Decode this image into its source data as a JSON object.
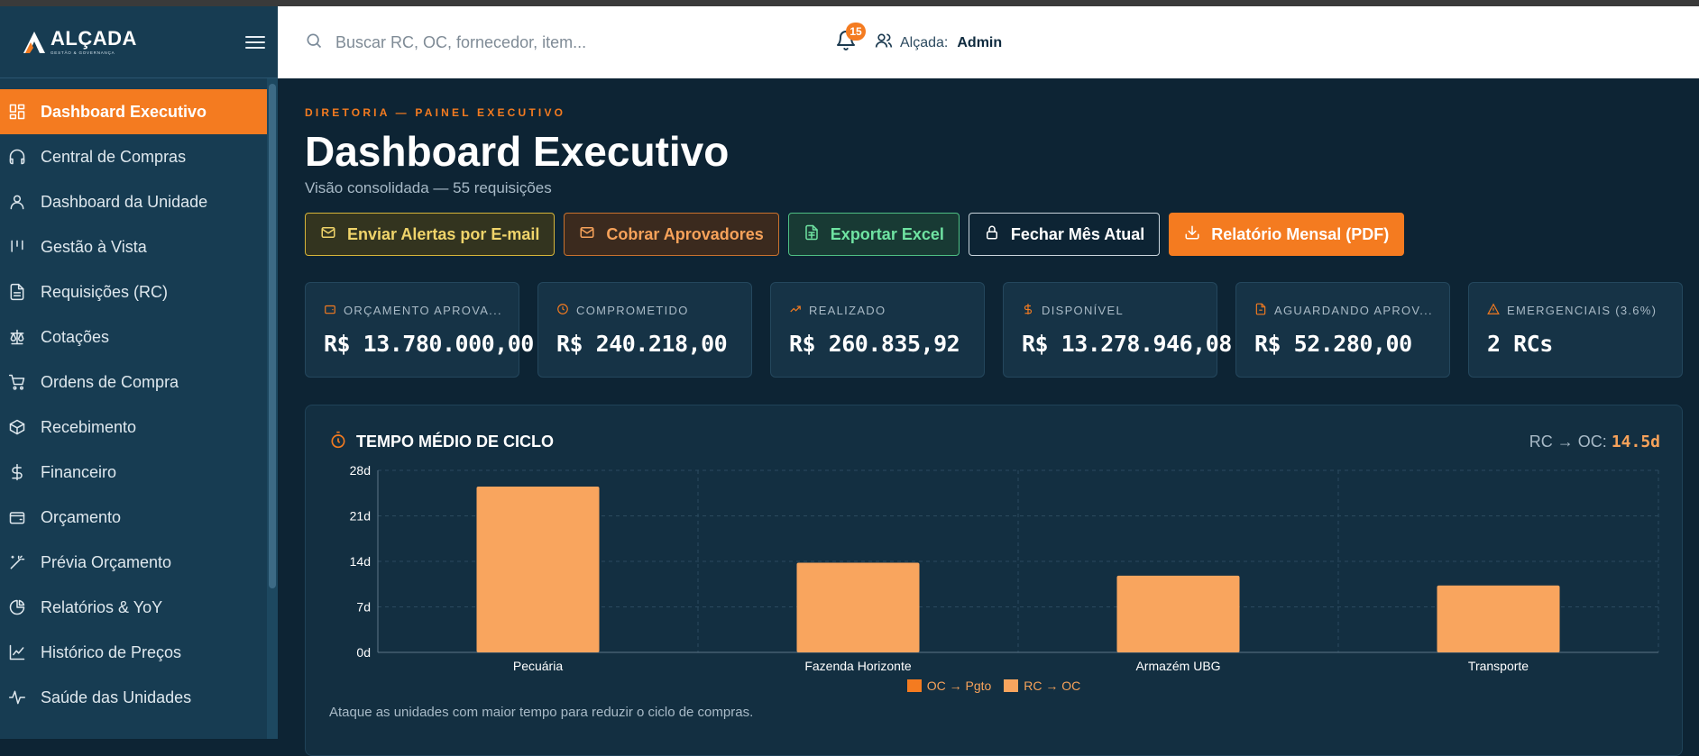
{
  "brand": {
    "name": "ALÇADA",
    "tagline": "GESTÃO & GOVERNANÇA"
  },
  "header": {
    "search_placeholder": "Buscar RC, OC, fornecedor, item...",
    "notifications_count": "15",
    "user_label": "Alçada:",
    "user_value": "Admin"
  },
  "sidebar": {
    "items": [
      {
        "label": "Dashboard Executivo",
        "icon": "dashboard-icon",
        "active": true
      },
      {
        "label": "Central de Compras",
        "icon": "headset-icon"
      },
      {
        "label": "Dashboard da Unidade",
        "icon": "user-icon"
      },
      {
        "label": "Gestão à Vista",
        "icon": "kanban-icon"
      },
      {
        "label": "Requisições (RC)",
        "icon": "file-text-icon"
      },
      {
        "label": "Cotações",
        "icon": "scale-icon"
      },
      {
        "label": "Ordens de Compra",
        "icon": "cart-icon"
      },
      {
        "label": "Recebimento",
        "icon": "package-icon"
      },
      {
        "label": "Financeiro",
        "icon": "dollar-icon"
      },
      {
        "label": "Orçamento",
        "icon": "wallet-icon"
      },
      {
        "label": "Prévia Orçamento",
        "icon": "magic-wand-icon"
      },
      {
        "label": "Relatórios & YoY",
        "icon": "pie-chart-icon"
      },
      {
        "label": "Histórico de Preços",
        "icon": "line-chart-icon"
      },
      {
        "label": "Saúde das Unidades",
        "icon": "activity-icon"
      }
    ]
  },
  "page": {
    "eyebrow": "DIRETORIA — PAINEL EXECUTIVO",
    "title": "Dashboard Executivo",
    "subtitle": "Visão consolidada — 55 requisições"
  },
  "actions": [
    {
      "label": "Enviar Alertas por E-mail",
      "icon": "mail-icon"
    },
    {
      "label": "Cobrar Aprovadores",
      "icon": "mail-icon"
    },
    {
      "label": "Exportar Excel",
      "icon": "spreadsheet-icon"
    },
    {
      "label": "Fechar Mês Atual",
      "icon": "lock-icon"
    },
    {
      "label": "Relatório Mensal (PDF)",
      "icon": "download-icon"
    }
  ],
  "kpis": [
    {
      "label": "ORÇAMENTO APROVA...",
      "value": "R$ 13.780.000,00",
      "icon": "wallet-icon"
    },
    {
      "label": "COMPROMETIDO",
      "value": "R$ 240.218,00",
      "icon": "clock-icon"
    },
    {
      "label": "REALIZADO",
      "value": "R$ 260.835,92",
      "icon": "trending-up-icon"
    },
    {
      "label": "DISPONÍVEL",
      "value": "R$ 13.278.946,08",
      "icon": "dollar-icon"
    },
    {
      "label": "AGUARDANDO APROV...",
      "value": "R$ 52.280,00",
      "icon": "file-icon"
    },
    {
      "label": "EMERGENCIAIS (3.6%)",
      "value": "2 RCs",
      "icon": "alert-triangle-icon"
    }
  ],
  "cycle_panel": {
    "title": "TEMPO MÉDIO DE CICLO",
    "metric_label": "RC → OC:",
    "metric_value": "14.5d",
    "note": "Ataque as unidades com maior tempo para reduzir o ciclo de compras."
  },
  "chart_data": {
    "type": "bar",
    "categories": [
      "Pecuária",
      "Fazenda Horizonte",
      "Armazém UBG",
      "Transporte"
    ],
    "series": [
      {
        "name": "OC → Pgto",
        "values": [
          0,
          0,
          0,
          0
        ],
        "color": "#f47b20"
      },
      {
        "name": "RC → OC",
        "values": [
          25.5,
          13.8,
          11.8,
          10.3
        ],
        "color": "#f9a55e"
      }
    ],
    "stacked": true,
    "ylim": [
      0,
      28
    ],
    "yticks": [
      "0d",
      "7d",
      "14d",
      "21d",
      "28d"
    ],
    "ytick_values": [
      0,
      7,
      14,
      21,
      28
    ],
    "legend": "bottom",
    "grid": true
  }
}
